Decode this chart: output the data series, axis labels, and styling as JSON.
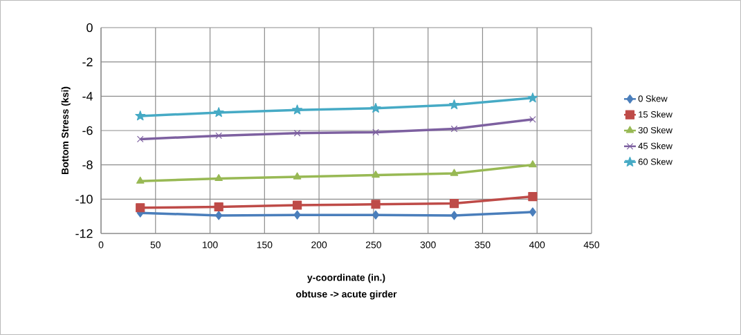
{
  "chart_data": {
    "type": "line",
    "xlabel": "y-coordinate (in.)\nobtuse -> acute girder",
    "ylabel": "Bottom Stress (ksi)",
    "x": [
      36,
      108,
      180,
      252,
      324,
      396
    ],
    "series": [
      {
        "name": "0 Skew",
        "color": "#4a7ebb",
        "marker": "diamond",
        "values": [
          -10.8,
          -10.95,
          -10.92,
          -10.92,
          -10.95,
          -10.75
        ]
      },
      {
        "name": "15 Skew",
        "color": "#be4b48",
        "marker": "square",
        "values": [
          -10.5,
          -10.45,
          -10.35,
          -10.3,
          -10.25,
          -9.85
        ]
      },
      {
        "name": "30 Skew",
        "color": "#98b954",
        "marker": "triangle",
        "values": [
          -8.95,
          -8.8,
          -8.7,
          -8.6,
          -8.5,
          -8.0
        ]
      },
      {
        "name": "45 Skew",
        "color": "#7d60a0",
        "marker": "cross",
        "values": [
          -6.5,
          -6.3,
          -6.15,
          -6.1,
          -5.9,
          -5.35
        ]
      },
      {
        "name": "60 Skew",
        "color": "#46aac5",
        "marker": "star",
        "values": [
          -5.15,
          -4.95,
          -4.8,
          -4.7,
          -4.5,
          -4.1
        ]
      }
    ],
    "xlim": [
      0,
      450
    ],
    "xticks": [
      0,
      50,
      100,
      150,
      200,
      250,
      300,
      350,
      400,
      450
    ],
    "ylim": [
      -12,
      0
    ],
    "yticks": [
      -12,
      -10,
      -8,
      -6,
      -4,
      -2,
      0
    ],
    "grid": true,
    "legend": "right",
    "line_style": "solid"
  }
}
